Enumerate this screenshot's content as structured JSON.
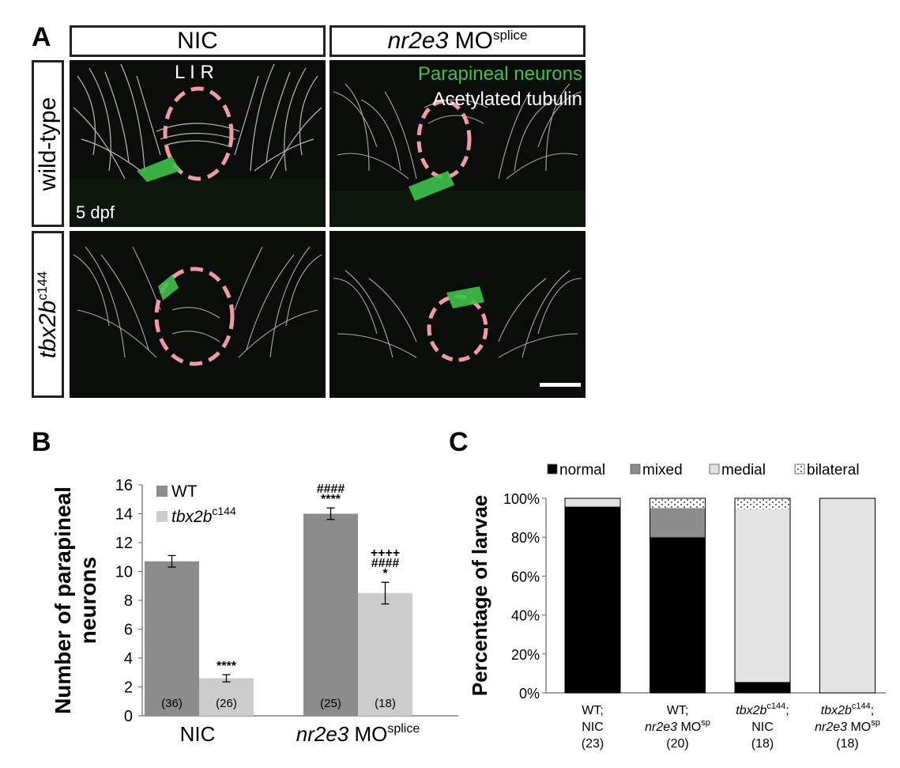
{
  "panelA": {
    "letter": "A",
    "col_headers": [
      {
        "main": "NIC",
        "italic": "",
        "sup": ""
      },
      {
        "main": " MO",
        "italic": "nr2e3",
        "sup": "splice"
      }
    ],
    "row_headers": [
      {
        "main": "wild-type",
        "sup": ""
      },
      {
        "main": "tbx2b",
        "sup": "c144"
      }
    ],
    "labels": {
      "lir": "L I R",
      "green": "Parapineal neurons",
      "white": "Acetylated tubulin",
      "stage": "5 dpf"
    },
    "colors": {
      "green": "#3ec24a",
      "circle": "#f29aa3"
    }
  },
  "chart_data": [
    {
      "panel": "B",
      "type": "bar",
      "ylabel": "Number of parapineal neurons",
      "categories": [
        "NIC",
        "nr2e3 MOsplice"
      ],
      "cat_main": [
        "NIC",
        " MO"
      ],
      "cat_italic": [
        "",
        "nr2e3"
      ],
      "cat_sup": [
        "",
        "splice"
      ],
      "ylim": [
        0,
        16
      ],
      "yticks": [
        "0",
        "2",
        "4",
        "6",
        "8",
        "10",
        "12",
        "14",
        "16"
      ],
      "series": [
        {
          "name": "WT",
          "name_main": "WT",
          "name_sup": "",
          "color": "#8c8c8c",
          "values": [
            10.7,
            14.0
          ],
          "errors": [
            0.4,
            0.4
          ],
          "n": [
            "(36)",
            "(25)"
          ],
          "sig": [
            [],
            [
              "####",
              "****"
            ]
          ]
        },
        {
          "name": "tbx2bc144",
          "name_main": "tbx2b",
          "name_sup": "c144",
          "color": "#cccccc",
          "values": [
            2.6,
            8.5
          ],
          "errors": [
            0.25,
            0.75
          ],
          "n": [
            "(26)",
            "(18)"
          ],
          "sig": [
            [
              "****"
            ],
            [
              "++++",
              "####",
              "*"
            ]
          ]
        }
      ]
    },
    {
      "panel": "C",
      "type": "bar",
      "stacked": true,
      "ylabel": "Percentage of larvae",
      "ylim": [
        0,
        100
      ],
      "yticks": [
        "0%",
        "20%",
        "40%",
        "60%",
        "80%",
        "100%"
      ],
      "categories": [
        {
          "line1": "WT;",
          "line1_sup": "",
          "line2": "NIC",
          "line2_italic": "",
          "line2_sup": "",
          "n": "(23)"
        },
        {
          "line1": "WT;",
          "line1_sup": "",
          "line2": " MO",
          "line2_italic": "nr2e3",
          "line2_sup": "sp",
          "n": "(20)"
        },
        {
          "line1": "tbx2b",
          "line1_sup": "c144",
          "line2": "NIC",
          "line2_italic": "",
          "line2_sup": "",
          "n": "(18)"
        },
        {
          "line1": "tbx2b",
          "line1_sup": "c144",
          "line2": " MO",
          "line2_italic": "nr2e3",
          "line2_sup": "sp",
          "n": "(18)"
        }
      ],
      "series": [
        {
          "name": "normal",
          "color": "#000000",
          "values": [
            95.7,
            80.0,
            5.6,
            0
          ]
        },
        {
          "name": "mixed",
          "color": "#8c8c8c",
          "values": [
            0,
            15.0,
            0,
            0
          ]
        },
        {
          "name": "medial",
          "color": "#e3e3e3",
          "values": [
            4.3,
            0,
            88.8,
            100
          ]
        },
        {
          "name": "bilateral",
          "color": "dotted",
          "values": [
            0,
            5.0,
            5.6,
            0
          ]
        }
      ],
      "legend": "top"
    }
  ]
}
